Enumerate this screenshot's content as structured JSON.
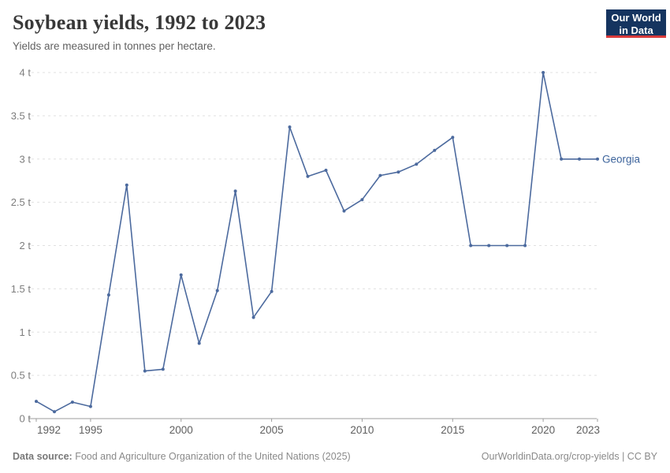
{
  "header": {
    "title": "Soybean yields, 1992 to 2023",
    "subtitle": "Yields are measured in tonnes per hectare.",
    "logo": {
      "line1": "Our World",
      "line2": "in Data"
    }
  },
  "chart_data": {
    "type": "line",
    "title": "Soybean yields, 1992 to 2023",
    "unit": "tonnes per hectare",
    "x": [
      1992,
      1993,
      1994,
      1995,
      1996,
      1997,
      1998,
      1999,
      2000,
      2001,
      2002,
      2003,
      2004,
      2005,
      2006,
      2007,
      2008,
      2009,
      2010,
      2011,
      2012,
      2013,
      2014,
      2015,
      2016,
      2017,
      2018,
      2019,
      2020,
      2021,
      2022,
      2023
    ],
    "series": [
      {
        "name": "Georgia",
        "color": "#4c6a9e",
        "values": [
          0.2,
          0.08,
          0.19,
          0.14,
          1.43,
          2.7,
          0.55,
          0.57,
          1.66,
          0.87,
          1.48,
          2.63,
          1.17,
          1.47,
          3.37,
          2.8,
          2.87,
          2.4,
          2.53,
          2.81,
          2.85,
          2.94,
          3.1,
          3.25,
          2.0,
          2.0,
          2.0,
          2.0,
          4.0,
          3.0,
          3.0,
          3.0
        ]
      }
    ],
    "xlim": [
      1992,
      2023
    ],
    "ylim": [
      0,
      4
    ],
    "x_ticks": [
      1992,
      1995,
      2000,
      2005,
      2010,
      2015,
      2020,
      2023
    ],
    "y_ticks": [
      0,
      0.5,
      1,
      1.5,
      2,
      2.5,
      3,
      3.5,
      4
    ],
    "y_tick_labels": [
      "0 t",
      "0.5 t",
      "1 t",
      "1.5 t",
      "2 t",
      "2.5 t",
      "3 t",
      "3.5 t",
      "4 t"
    ],
    "grid": "horizontal-dashed",
    "legend_position": "end-of-line-label"
  },
  "footer": {
    "source_label": "Data source:",
    "source_text": " Food and Agriculture Organization of the United Nations (2025)",
    "credit": "OurWorldinData.org/crop-yields | CC BY"
  },
  "colors": {
    "line": "#4c6a9e",
    "series_label": "#3d649c",
    "grid": "#e0e0e0",
    "axis": "#9e9e9e",
    "y_tick_text": "#7d7d7d",
    "x_tick_text": "#5f5f5f",
    "logo_bg": "#15345f",
    "logo_accent": "#d93a3a"
  }
}
